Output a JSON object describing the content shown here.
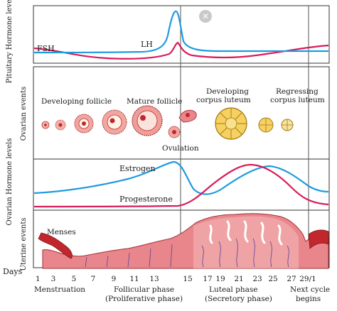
{
  "panels": {
    "pituitary": "Pituitary Hormone levels",
    "ovarian_events": "Ovarian events",
    "ovarian_hormones": "Ovarian Hormone levels",
    "uterine": "Uterine events"
  },
  "hormone_labels": {
    "fsh": "FSH",
    "lh": "LH",
    "estrogen": "Estrogen",
    "progesterone": "Progesterone"
  },
  "ovarian_labels": {
    "developing_follicle": "Developing follicle",
    "mature_follicle": "Mature follicle",
    "ovulation": "Ovulation",
    "developing_cl_1": "Developing",
    "developing_cl_2": "corpus luteum",
    "regressing_cl_1": "Regressing",
    "regressing_cl_2": "corpus luteum"
  },
  "uterine_labels": {
    "menses": "Menses"
  },
  "days": {
    "title": "Days",
    "ticks": [
      "1",
      "3",
      "5",
      "7",
      "9",
      "11",
      "13",
      "15",
      "17",
      "19",
      "21",
      "23",
      "25",
      "27",
      "29/1"
    ]
  },
  "phases": {
    "menstruation": "Menstruation",
    "follicular_1": "Follicular phase",
    "follicular_2": "(Proliferative phase)",
    "luteal_1": "Luteal phase",
    "luteal_2": "(Secretory phase)",
    "next_1": "Next cycle",
    "next_2": "begins"
  },
  "colors": {
    "blue_line": "#1e9be0",
    "red_line": "#d81b5a",
    "tissue": "#e8868c",
    "tissue_dark": "#c1272d",
    "follicle_yellow": "#f2c94c"
  },
  "close_icon": "close-icon"
}
